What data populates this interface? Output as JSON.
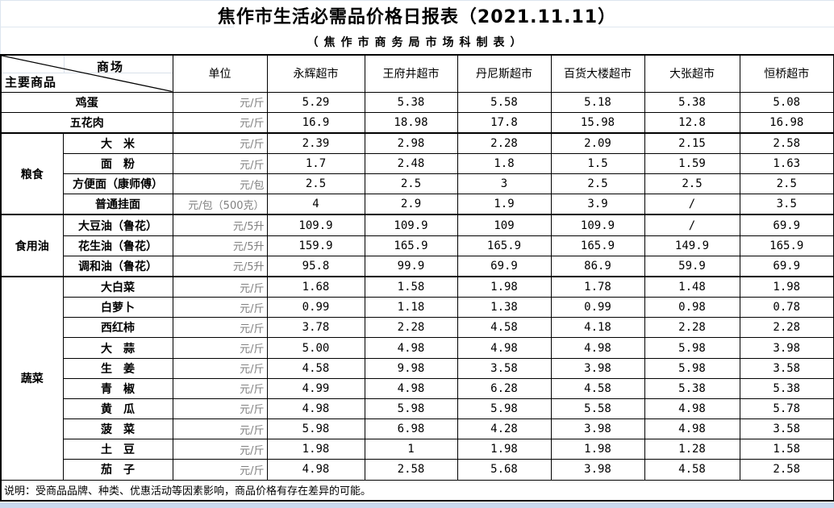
{
  "page": {
    "title": "焦作市生活必需品价格日报表（2021.11.11）",
    "subtitle": "（焦作市商务局市场科制表）",
    "footer_note": "说明：受商品品牌、种类、优惠活动等因素影响，商品价格有存在差异的可能。"
  },
  "colors": {
    "table_border": "#000000",
    "unit_text": "#808080",
    "bottom_strip": "#c9d9ee",
    "faint_gridline": "#dde5ef",
    "background": "#ffffff"
  },
  "table": {
    "corner": {
      "top_right_label": "商场",
      "bottom_left_label": "主要商品"
    },
    "unit_header": "单位",
    "markets": [
      "永辉超市",
      "王府井超市",
      "丹尼斯超市",
      "百货大楼超市",
      "大张超市",
      "恒桥超市"
    ],
    "rows": [
      {
        "full": true,
        "item": "鸡蛋",
        "unit": "元/斤",
        "values": [
          "5.29",
          "5.38",
          "5.58",
          "5.18",
          "5.38",
          "5.08"
        ]
      },
      {
        "full": true,
        "item": "五花肉",
        "unit": "元/斤",
        "values": [
          "16.9",
          "18.98",
          "17.8",
          "15.98",
          "12.8",
          "16.98"
        ]
      },
      {
        "group": "粮食",
        "span": 4,
        "item": "大　米",
        "unit": "元/斤",
        "values": [
          "2.39",
          "2.98",
          "2.28",
          "2.09",
          "2.15",
          "2.58"
        ]
      },
      {
        "item": "面　粉",
        "unit": "元/斤",
        "values": [
          "1.7",
          "2.48",
          "1.8",
          "1.5",
          "1.59",
          "1.63"
        ]
      },
      {
        "item": "方便面（康师傅）",
        "unit": "元/包",
        "values": [
          "2.5",
          "2.5",
          "3",
          "2.5",
          "2.5",
          "2.5"
        ]
      },
      {
        "item": "普通挂面",
        "unit": "元/包（500克）",
        "values": [
          "4",
          "2.9",
          "1.9",
          "3.9",
          "/",
          "3.5"
        ]
      },
      {
        "group": "食用油",
        "span": 3,
        "item": "大豆油（鲁花）",
        "unit": "元/5升",
        "values": [
          "109.9",
          "109.9",
          "109",
          "109.9",
          "/",
          "69.9"
        ]
      },
      {
        "item": "花生油（鲁花）",
        "unit": "元/5升",
        "values": [
          "159.9",
          "165.9",
          "165.9",
          "165.9",
          "149.9",
          "165.9"
        ]
      },
      {
        "item": "调和油（鲁花）",
        "unit": "元/5升",
        "values": [
          "95.8",
          "99.9",
          "69.9",
          "86.9",
          "59.9",
          "69.9"
        ]
      },
      {
        "group": "蔬菜",
        "span": 10,
        "item": "大白菜",
        "unit": "元/斤",
        "values": [
          "1.68",
          "1.58",
          "1.98",
          "1.78",
          "1.48",
          "1.98"
        ]
      },
      {
        "item": "白萝卜",
        "unit": "元/斤",
        "values": [
          "0.99",
          "1.18",
          "1.38",
          "0.99",
          "0.98",
          "0.78"
        ]
      },
      {
        "item": "西红柿",
        "unit": "元/斤",
        "values": [
          "3.78",
          "2.28",
          "4.58",
          "4.18",
          "2.28",
          "2.28"
        ]
      },
      {
        "item": "大　蒜",
        "unit": "元/斤",
        "values": [
          "5.00",
          "4.98",
          "4.98",
          "4.98",
          "5.98",
          "3.98"
        ]
      },
      {
        "item": "生　姜",
        "unit": "元/斤",
        "values": [
          "4.58",
          "9.98",
          "3.58",
          "3.98",
          "5.98",
          "3.58"
        ]
      },
      {
        "item": "青　椒",
        "unit": "元/斤",
        "values": [
          "4.99",
          "4.98",
          "6.28",
          "4.58",
          "5.38",
          "5.38"
        ]
      },
      {
        "item": "黄　瓜",
        "unit": "元/斤",
        "values": [
          "4.98",
          "5.98",
          "5.98",
          "5.58",
          "4.98",
          "5.78"
        ]
      },
      {
        "item": "菠　菜",
        "unit": "元/斤",
        "values": [
          "5.98",
          "6.98",
          "4.28",
          "3.98",
          "4.98",
          "3.58"
        ]
      },
      {
        "item": "土　豆",
        "unit": "元/斤",
        "values": [
          "1.98",
          "1",
          "1.98",
          "1.98",
          "1.28",
          "1.58"
        ]
      },
      {
        "item": "茄　子",
        "unit": "元/斤",
        "values": [
          "4.98",
          "2.58",
          "5.68",
          "3.98",
          "4.58",
          "2.58"
        ]
      }
    ]
  }
}
